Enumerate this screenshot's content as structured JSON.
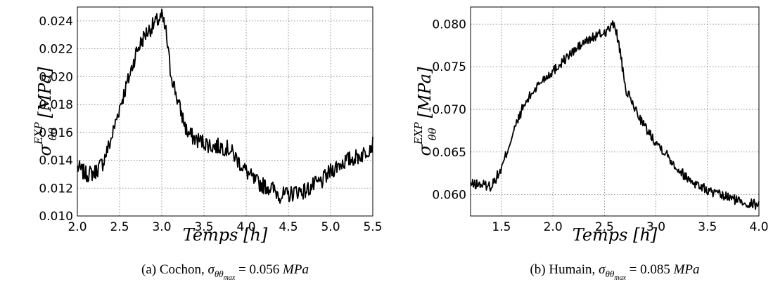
{
  "chart_data": [
    {
      "type": "line",
      "panel": "a",
      "xlim": [
        2.0,
        5.5
      ],
      "ylim": [
        0.01,
        0.025
      ],
      "xticks": [
        "2.0",
        "2.5",
        "3.0",
        "3.5",
        "4.0",
        "4.5",
        "5.0",
        "5.5"
      ],
      "yticks": [
        "0.010",
        "0.012",
        "0.014",
        "0.016",
        "0.018",
        "0.020",
        "0.022",
        "0.024"
      ],
      "xlabel": "Temps [h]",
      "ylabel_main": "σ",
      "ylabel_sup": "EXP",
      "ylabel_sub": "θθ",
      "ylabel_unit": "[MPa]",
      "grid": true,
      "caption": {
        "prefix": "(a) Cochon, ",
        "sym": "σ",
        "sub": "θθ",
        "subsub": "max",
        "eq": " = 0.056 ",
        "unit": "MPa"
      },
      "x": [
        2.0,
        2.1,
        2.2,
        2.3,
        2.4,
        2.5,
        2.6,
        2.7,
        2.8,
        2.9,
        3.0,
        3.05,
        3.1,
        3.2,
        3.3,
        3.4,
        3.5,
        3.6,
        3.7,
        3.8,
        3.9,
        4.0,
        4.1,
        4.2,
        4.3,
        4.4,
        4.5,
        4.6,
        4.7,
        4.8,
        4.9,
        5.0,
        5.1,
        5.2,
        5.3,
        5.4,
        5.5
      ],
      "y": [
        0.0135,
        0.013,
        0.0131,
        0.0138,
        0.0155,
        0.0178,
        0.0197,
        0.0218,
        0.023,
        0.0237,
        0.0243,
        0.0232,
        0.0205,
        0.018,
        0.016,
        0.0155,
        0.0153,
        0.015,
        0.015,
        0.0148,
        0.014,
        0.0132,
        0.0125,
        0.0122,
        0.012,
        0.0115,
        0.0115,
        0.0118,
        0.0118,
        0.0122,
        0.0125,
        0.0132,
        0.0137,
        0.014,
        0.0142,
        0.0145,
        0.0152
      ],
      "noise": 0.0006
    },
    {
      "type": "line",
      "panel": "b",
      "xlim": [
        1.2,
        4.0
      ],
      "ylim": [
        0.0575,
        0.082
      ],
      "xticks": [
        "1.5",
        "2.0",
        "2.5",
        "3.0",
        "3.5",
        "4.0"
      ],
      "xtick_values": [
        1.5,
        2.0,
        2.5,
        3.0,
        3.5,
        4.0
      ],
      "yticks": [
        "0.060",
        "0.065",
        "0.070",
        "0.075",
        "0.080"
      ],
      "ytick_values": [
        0.06,
        0.065,
        0.07,
        0.075,
        0.08
      ],
      "xlabel": "Temps [h]",
      "ylabel_main": "σ",
      "ylabel_sup": "EXP",
      "ylabel_sub": "θθ",
      "ylabel_unit": "[MPa]",
      "grid": true,
      "caption": {
        "prefix": "(b) Humain, ",
        "sym": "σ",
        "sub": "θθ",
        "subsub": "max",
        "eq": " = 0.085 ",
        "unit": "MPa"
      },
      "x": [
        1.2,
        1.3,
        1.4,
        1.5,
        1.6,
        1.7,
        1.8,
        1.9,
        2.0,
        2.1,
        2.2,
        2.3,
        2.4,
        2.5,
        2.6,
        2.65,
        2.7,
        2.8,
        2.9,
        3.0,
        3.1,
        3.2,
        3.3,
        3.4,
        3.5,
        3.6,
        3.7,
        3.8,
        3.9,
        4.0
      ],
      "y": [
        0.0612,
        0.0612,
        0.061,
        0.063,
        0.0668,
        0.07,
        0.072,
        0.0735,
        0.0745,
        0.0757,
        0.0768,
        0.0778,
        0.0785,
        0.079,
        0.08,
        0.077,
        0.0725,
        0.07,
        0.0678,
        0.0662,
        0.0648,
        0.0632,
        0.062,
        0.0612,
        0.0605,
        0.06,
        0.0597,
        0.0593,
        0.059,
        0.0588
      ],
      "noise": 0.0006
    }
  ]
}
